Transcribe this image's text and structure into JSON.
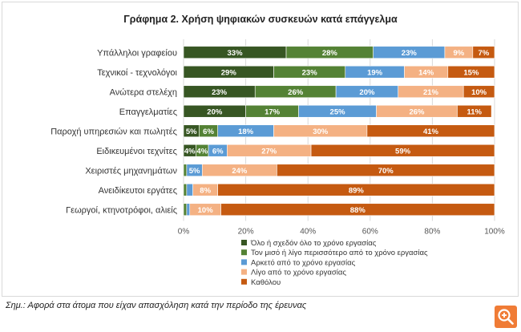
{
  "chart_data": {
    "type": "bar",
    "orientation": "horizontal",
    "stacked": true,
    "title": "Γράφημα 2. Χρήση ψηφιακών συσκευών κατά επάγγελμα",
    "xlim": [
      0,
      100
    ],
    "x_ticks": [
      "0%",
      "20%",
      "40%",
      "60%",
      "80%",
      "100%"
    ],
    "grid": true,
    "legend_position": "bottom",
    "categories": [
      "Υπάλληλοι γραφείου",
      "Τεχνικοί - τεχνολόγοι",
      "Ανώτερα στελέχη",
      "Επαγγελματίες",
      "Παροχή υπηρεσιών και πωλητές",
      "Ειδικευμένοι τεχνίτες",
      "Χειριστές μηχανημάτων",
      "Ανειδίκευτοι εργάτες",
      "Γεωργοί, κτηνοτρόφοι, αλιείς"
    ],
    "series": [
      {
        "name": "Όλο ή σχεδόν όλο το χρόνο εργασίας",
        "color": "#375623",
        "values": [
          33,
          29,
          23,
          20,
          5,
          4,
          0,
          0,
          0
        ],
        "labels": [
          "33%",
          "29%",
          "23%",
          "20%",
          "5%",
          "4%",
          "",
          "",
          ""
        ]
      },
      {
        "name": "Τον μισό ή λίγο περισσότερο από το χρόνο εργασίας",
        "color": "#548235",
        "values": [
          28,
          23,
          26,
          17,
          6,
          4,
          1,
          1,
          1
        ],
        "labels": [
          "28%",
          "23%",
          "26%",
          "17%",
          "6%",
          "4%",
          "",
          "",
          ""
        ]
      },
      {
        "name": "Αρκετό από το χρόνο εργασίας",
        "color": "#5b9bd5",
        "values": [
          23,
          19,
          20,
          25,
          18,
          6,
          5,
          2,
          1
        ],
        "labels": [
          "23%",
          "19%",
          "20%",
          "25%",
          "18%",
          "6%",
          "5%",
          "",
          ""
        ]
      },
      {
        "name": "Λίγο από το χρόνο εργασίας",
        "color": "#f4b183",
        "values": [
          9,
          14,
          21,
          26,
          30,
          27,
          24,
          8,
          10
        ],
        "labels": [
          "9%",
          "14%",
          "21%",
          "26%",
          "30%",
          "27%",
          "24%",
          "8%",
          "10%"
        ]
      },
      {
        "name": "Καθόλου",
        "color": "#c55a11",
        "values": [
          7,
          15,
          10,
          11,
          41,
          59,
          70,
          89,
          88
        ],
        "labels": [
          "7%",
          "15%",
          "10%",
          "11%",
          "41%",
          "59%",
          "70%",
          "89%",
          "88%"
        ]
      }
    ]
  },
  "note": "Σημ.: Αφορά στα άτομα που είχαν απασχόληση κατά την περίοδο της έρευνας",
  "zoom_icon": "zoom-icon",
  "colors": {
    "zoom": "#f07c36"
  }
}
